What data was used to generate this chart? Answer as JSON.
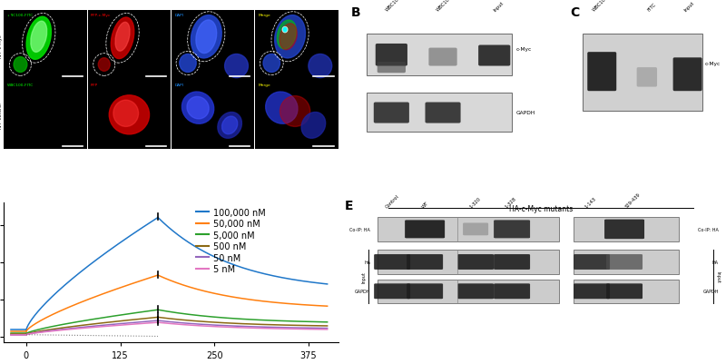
{
  "spr_colors": [
    "#1f77c9",
    "#ff7f0e",
    "#2ca02c",
    "#8B6914",
    "#9467bd",
    "#e377c2"
  ],
  "spr_labels": [
    "100,000 nM",
    "50,000 nM",
    "5,000 nM",
    "500 nM",
    "50 nM",
    "5 nM"
  ],
  "spr_assoc_start_y": [
    18,
    14,
    8,
    6,
    5,
    5
  ],
  "spr_peak_y": [
    320,
    165,
    72,
    52,
    43,
    38
  ],
  "spr_final_y": [
    120,
    72,
    35,
    26,
    20,
    17
  ],
  "bg_color": "#ffffff",
  "panel_label_fontsize": 10,
  "axis_label_fontsize": 7.5,
  "tick_fontsize": 7,
  "legend_fontsize": 7
}
